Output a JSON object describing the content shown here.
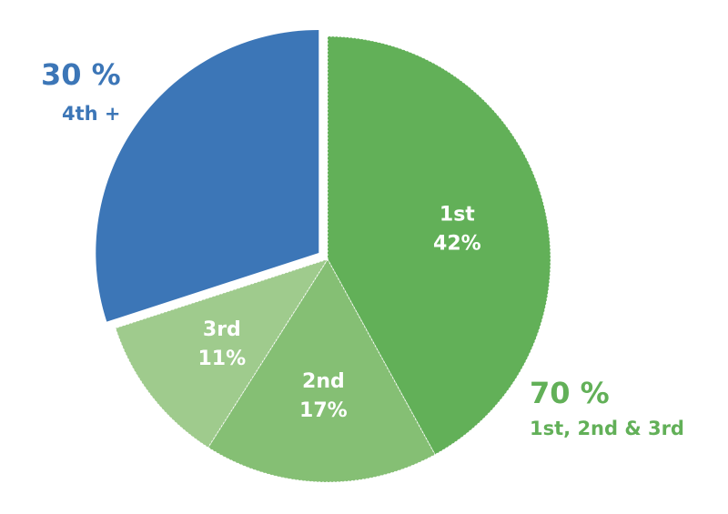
{
  "chart_data": {
    "type": "pie",
    "slices": [
      {
        "label": "1st",
        "value": 42,
        "value_label": "42%",
        "color": "#62b058"
      },
      {
        "label": "2nd",
        "value": 17,
        "value_label": "17%",
        "color": "#85bf74"
      },
      {
        "label": "3rd",
        "value": 11,
        "value_label": "11%",
        "color": "#9fcb8d"
      },
      {
        "label": "4th +",
        "value": 30,
        "value_label": "",
        "color": "#3c76b7",
        "exploded": true
      }
    ],
    "groups": [
      {
        "percent": "30 %",
        "caption": "4th +",
        "color": "#3c76b7"
      },
      {
        "percent": "70 %",
        "caption": "1st, 2nd & 3rd",
        "color": "#62b058"
      }
    ],
    "title": "",
    "legend": "none"
  }
}
